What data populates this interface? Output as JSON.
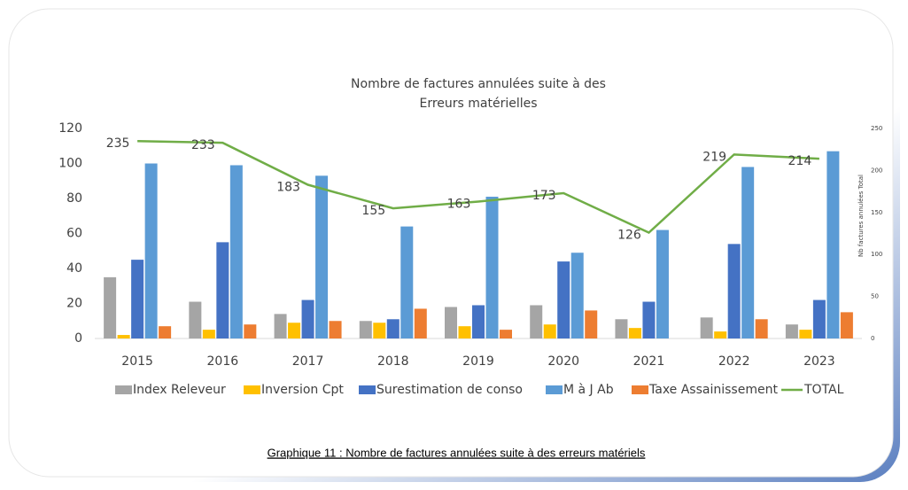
{
  "chart_data": {
    "type": "bar",
    "title": [
      "Nombre de factures annulées suite à des",
      "Erreurs matérielles"
    ],
    "categories": [
      "2015",
      "2016",
      "2017",
      "2018",
      "2019",
      "2020",
      "2021",
      "2022",
      "2023"
    ],
    "series": [
      {
        "name": "Index Releveur",
        "color": "#a5a5a5",
        "values": [
          35,
          21,
          14,
          10,
          18,
          19,
          11,
          12,
          8
        ]
      },
      {
        "name": "Inversion Cpt",
        "color": "#ffc000",
        "values": [
          2,
          5,
          9,
          9,
          7,
          8,
          6,
          4,
          5
        ]
      },
      {
        "name": "Surestimation de conso",
        "color": "#4472c4",
        "values": [
          45,
          55,
          22,
          11,
          19,
          44,
          21,
          54,
          22
        ]
      },
      {
        "name": "M à J Ab",
        "color": "#5b9bd5",
        "values": [
          100,
          99,
          93,
          64,
          81,
          49,
          62,
          98,
          107
        ]
      },
      {
        "name": "Taxe Assainissement",
        "color": "#ed7d31",
        "values": [
          7,
          8,
          10,
          17,
          5,
          16,
          0,
          11,
          15
        ]
      },
      {
        "name": "TOTAL",
        "color": "#70ad47",
        "type": "line",
        "axis": "y2",
        "values": [
          235,
          233,
          183,
          155,
          163,
          173,
          126,
          219,
          214
        ]
      }
    ],
    "ylim": [
      0,
      120
    ],
    "yticks": [
      0,
      20,
      40,
      60,
      80,
      100,
      120
    ],
    "y2lim": [
      0,
      250
    ],
    "y2ticks": [
      0,
      50,
      100,
      150,
      200,
      250
    ],
    "y2label": "Nb factures annulées Total",
    "legend": "bottom",
    "caption": "Graphique 11 : Nombre de factures annulées suite à des erreurs matériels"
  }
}
